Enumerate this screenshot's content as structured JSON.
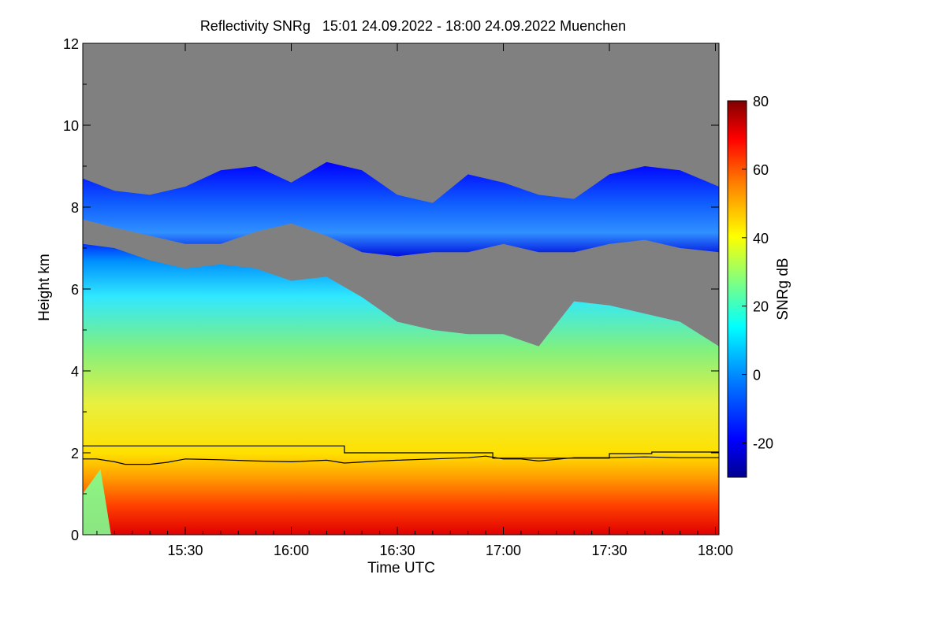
{
  "chart_data": {
    "type": "heatmap",
    "title": "Reflectivity SNRg   15:01 24.09.2022 - 18:00 24.09.2022 Muenchen",
    "xlabel": "Time UTC",
    "ylabel": "Height km",
    "colorbar_label": "SNRg dB",
    "xlim_minutes_utc": [
      901,
      1081
    ],
    "ylim_km": [
      0,
      12
    ],
    "colorbar_range_db": [
      -30,
      80
    ],
    "x_ticks": [
      {
        "minutes": 930,
        "label": "15:30"
      },
      {
        "minutes": 960,
        "label": "16:00"
      },
      {
        "minutes": 990,
        "label": "16:30"
      },
      {
        "minutes": 1020,
        "label": "17:00"
      },
      {
        "minutes": 1050,
        "label": "17:30"
      },
      {
        "minutes": 1080,
        "label": "18:00"
      }
    ],
    "y_ticks": [
      {
        "value": 0,
        "label": "0"
      },
      {
        "value": 2,
        "label": "2"
      },
      {
        "value": 4,
        "label": "4"
      },
      {
        "value": 6,
        "label": "6"
      },
      {
        "value": 8,
        "label": "8"
      },
      {
        "value": 10,
        "label": "10"
      },
      {
        "value": 12,
        "label": "12"
      }
    ],
    "colorbar_ticks": [
      {
        "value": -20,
        "label": "-20"
      },
      {
        "value": 0,
        "label": "0"
      },
      {
        "value": 20,
        "label": "20"
      },
      {
        "value": 40,
        "label": "40"
      },
      {
        "value": 60,
        "label": "60"
      },
      {
        "value": 80,
        "label": "80"
      }
    ],
    "no_signal_color": "#808080",
    "colormap": [
      "#00008f",
      "#0000ff",
      "#0080ff",
      "#00ffff",
      "#80ff80",
      "#ffff00",
      "#ff8000",
      "#ff0000",
      "#800000"
    ],
    "upper_cloud_layer": {
      "time_min": [
        901,
        910,
        920,
        930,
        940,
        950,
        960,
        970,
        980,
        990,
        1000,
        1010,
        1020,
        1030,
        1040,
        1050,
        1060,
        1070,
        1081
      ],
      "top_km": [
        8.7,
        8.4,
        8.3,
        8.5,
        8.9,
        9.0,
        8.6,
        9.1,
        8.9,
        8.3,
        8.1,
        8.8,
        8.6,
        8.3,
        8.2,
        8.8,
        9.0,
        8.9,
        8.5
      ],
      "base_km": [
        7.7,
        7.5,
        7.3,
        7.1,
        7.1,
        7.4,
        7.6,
        7.3,
        6.9,
        6.8,
        6.9,
        6.9,
        7.1,
        6.9,
        6.9,
        7.1,
        7.2,
        7.0,
        6.9
      ]
    },
    "lower_echo_top": {
      "time_min": [
        901,
        910,
        920,
        930,
        940,
        950,
        960,
        970,
        980,
        990,
        1000,
        1010,
        1020,
        1030,
        1040,
        1050,
        1060,
        1070,
        1081
      ],
      "top_km": [
        7.1,
        7.0,
        6.7,
        6.5,
        6.6,
        6.5,
        6.2,
        6.3,
        5.8,
        5.2,
        5.0,
        4.9,
        4.9,
        4.6,
        5.7,
        5.6,
        5.4,
        5.2,
        4.6
      ]
    },
    "lines": [
      {
        "name": "upper-step-line",
        "time_min": [
          901,
          975,
          975,
          1017,
          1017,
          1050,
          1050,
          1062,
          1062,
          1081
        ],
        "height_km": [
          2.17,
          2.17,
          2.0,
          2.0,
          1.87,
          1.87,
          1.98,
          1.98,
          2.02,
          2.02
        ]
      },
      {
        "name": "lower-profile-line",
        "time_min": [
          901,
          905,
          910,
          913,
          920,
          925,
          930,
          940,
          950,
          960,
          970,
          975,
          985,
          990,
          1000,
          1010,
          1015,
          1020,
          1025,
          1030,
          1040,
          1050,
          1060,
          1070,
          1081
        ],
        "height_km": [
          1.85,
          1.85,
          1.78,
          1.72,
          1.72,
          1.77,
          1.85,
          1.83,
          1.8,
          1.78,
          1.82,
          1.75,
          1.8,
          1.82,
          1.85,
          1.88,
          1.92,
          1.85,
          1.85,
          1.8,
          1.88,
          1.88,
          1.9,
          1.88,
          1.88
        ]
      }
    ]
  }
}
